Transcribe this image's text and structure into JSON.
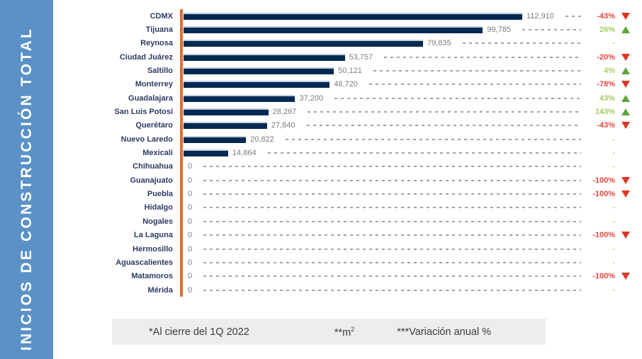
{
  "sidebar": {
    "title": "INICIOS DE CONSTRUCCIÓN TOTAL"
  },
  "chart_data": {
    "type": "bar",
    "orientation": "horizontal",
    "title": "INICIOS DE CONSTRUCCIÓN TOTAL",
    "units": "m²",
    "xlim": [
      0,
      112910
    ],
    "grid": false,
    "rows": [
      {
        "city": "CDMX",
        "value": 112910,
        "value_label": "112,910",
        "variation": "-43%",
        "direction": "down"
      },
      {
        "city": "Tijuana",
        "value": 99785,
        "value_label": "99,785",
        "variation": "26%",
        "direction": "up"
      },
      {
        "city": "Reynosa",
        "value": 79835,
        "value_label": "79,835",
        "variation": "-",
        "direction": "none"
      },
      {
        "city": "Ciudad Juárez",
        "value": 53757,
        "value_label": "53,757",
        "variation": "-20%",
        "direction": "down"
      },
      {
        "city": "Saltillo",
        "value": 50121,
        "value_label": "50,121",
        "variation": "4%",
        "direction": "up"
      },
      {
        "city": "Monterrey",
        "value": 48720,
        "value_label": "48,720",
        "variation": "-78%",
        "direction": "down"
      },
      {
        "city": "Guadalajara",
        "value": 37200,
        "value_label": "37,200",
        "variation": "43%",
        "direction": "up"
      },
      {
        "city": "San Luis Potosí",
        "value": 28267,
        "value_label": "28,267",
        "variation": "143%",
        "direction": "up"
      },
      {
        "city": "Querétaro",
        "value": 27840,
        "value_label": "27,840",
        "variation": "-43%",
        "direction": "down"
      },
      {
        "city": "Nuevo Laredo",
        "value": 20822,
        "value_label": "20,822",
        "variation": "-",
        "direction": "none"
      },
      {
        "city": "Mexicali",
        "value": 14864,
        "value_label": "14,864",
        "variation": "-",
        "direction": "none"
      },
      {
        "city": "Chihuahua",
        "value": 0,
        "value_label": "0",
        "variation": "-",
        "direction": "none"
      },
      {
        "city": "Guanajuato",
        "value": 0,
        "value_label": "0",
        "variation": "-100%",
        "direction": "down"
      },
      {
        "city": "Puebla",
        "value": 0,
        "value_label": "0",
        "variation": "-100%",
        "direction": "down"
      },
      {
        "city": "Hidalgo",
        "value": 0,
        "value_label": "0",
        "variation": "-",
        "direction": "none"
      },
      {
        "city": "Nogales",
        "value": 0,
        "value_label": "0",
        "variation": "-",
        "direction": "none"
      },
      {
        "city": "La Laguna",
        "value": 0,
        "value_label": "0",
        "variation": "-100%",
        "direction": "down"
      },
      {
        "city": "Hermosillo",
        "value": 0,
        "value_label": "0",
        "variation": "-",
        "direction": "none"
      },
      {
        "city": "Aguascalientes",
        "value": 0,
        "value_label": "0",
        "variation": "-",
        "direction": "none"
      },
      {
        "city": "Matamoros",
        "value": 0,
        "value_label": "0",
        "variation": "-100%",
        "direction": "down"
      },
      {
        "city": "Mérida",
        "value": 0,
        "value_label": "0",
        "variation": "-",
        "direction": "none"
      }
    ]
  },
  "footnotes": {
    "note1": "*Al cierre del 1Q 2022",
    "note2_prefix": "**m",
    "note2_sup": "2",
    "note3": "***Variación anual %"
  },
  "colors": {
    "sidebar_bg": "#5b91c6",
    "bar": "#042a52",
    "axis": "#dd7030",
    "city_label": "#2e3c63",
    "value_text": "#7c7c7c",
    "dash": "#a3a3a3",
    "negative": "#e8473d",
    "positive": "#a5cb61",
    "nochange": "#b8d478",
    "tri_up": "#5fa33c",
    "tri_down": "#df3526",
    "footnote_bg": "#ededed",
    "footnote_text": "#3c3c3c"
  }
}
